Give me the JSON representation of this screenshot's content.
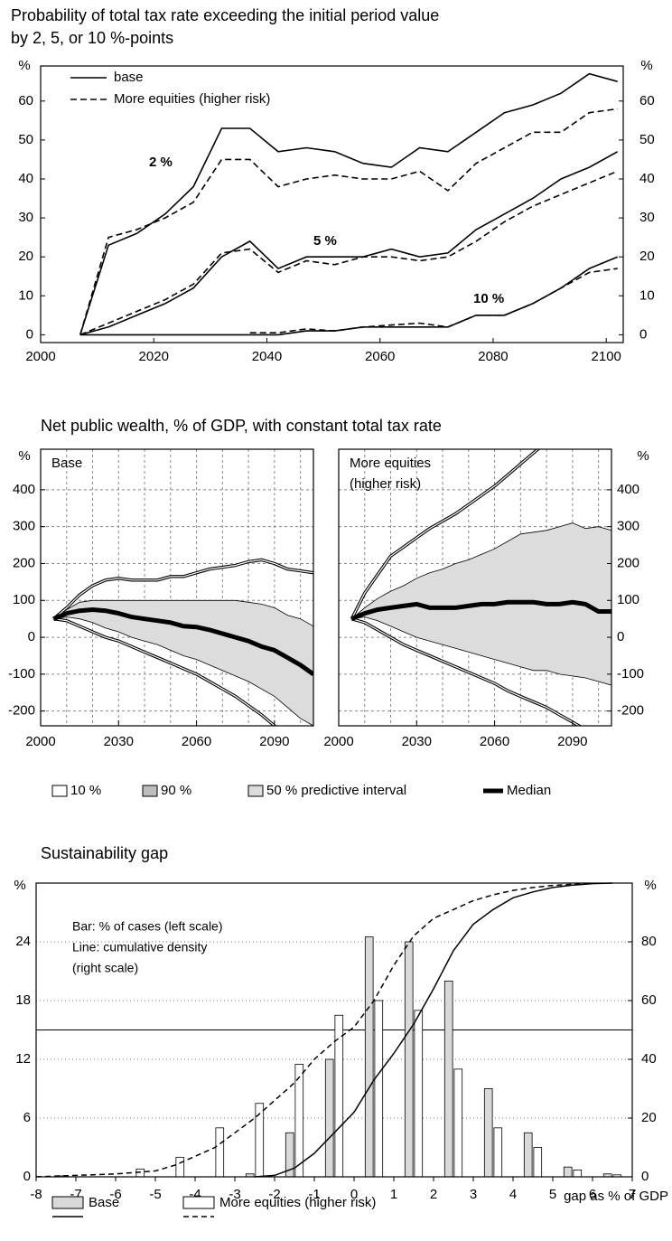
{
  "chart_data": [
    {
      "type": "line",
      "title": [
        "Probability of total tax rate exceeding the initial period value",
        "by 2, 5, or 10 %-points"
      ],
      "ylabel": "%",
      "y2label": "%",
      "x": [
        2007,
        2012,
        2017,
        2022,
        2027,
        2032,
        2037,
        2042,
        2047,
        2052,
        2057,
        2062,
        2067,
        2072,
        2077,
        2082,
        2087,
        2092,
        2097,
        2102
      ],
      "xlim": [
        2000,
        2103
      ],
      "xticks": [
        2000,
        2020,
        2040,
        2060,
        2080,
        2100
      ],
      "ylim": [
        -2,
        69
      ],
      "yticks": [
        0,
        10,
        20,
        30,
        40,
        50,
        60
      ],
      "grid": false,
      "annotations": [
        "2 %",
        "5 %",
        "10 %"
      ],
      "series": [
        {
          "name": "base",
          "color": "#000000",
          "dash": false,
          "values": [
            0,
            23,
            26,
            31,
            38,
            53,
            53,
            47,
            48,
            47,
            44,
            43,
            48,
            47,
            52,
            57,
            59,
            62,
            67,
            65
          ]
        },
        {
          "name": "More equities (higher risk)",
          "color": "#000000",
          "dash": true,
          "values": [
            0,
            25,
            27,
            30,
            34,
            45,
            45,
            38,
            40,
            41,
            40,
            40,
            42,
            37,
            44,
            48,
            52,
            52,
            57,
            58
          ]
        },
        {
          "name": "base",
          "color": "#000000",
          "dash": false,
          "values": [
            0,
            2,
            5,
            8,
            12,
            20,
            24,
            17,
            20,
            20,
            20,
            22,
            20,
            21,
            27,
            31,
            35,
            40,
            43,
            47
          ]
        },
        {
          "name": "More equities (higher risk)",
          "color": "#000000",
          "dash": true,
          "values": [
            0,
            3,
            6,
            9,
            13,
            21,
            22,
            16,
            19,
            18,
            20,
            20,
            19,
            20,
            24,
            29,
            33,
            36,
            39,
            42
          ]
        },
        {
          "name": "base",
          "color": "#000000",
          "dash": false,
          "values": [
            0,
            0,
            0,
            0,
            0,
            0,
            0,
            0,
            1,
            1,
            2,
            2,
            2,
            2,
            5,
            5,
            8,
            12,
            17,
            20
          ]
        },
        {
          "name": "More equities (higher risk)",
          "color": "#000000",
          "dash": true,
          "values": [
            null,
            null,
            null,
            null,
            null,
            null,
            0.5,
            0.5,
            1.5,
            1,
            2,
            2.5,
            3,
            2,
            5,
            5,
            8,
            12,
            16,
            17
          ]
        }
      ]
    },
    {
      "type": "fan",
      "title": "Net public wealth, % of GDP, with constant total tax rate",
      "ylabel": "%",
      "y2label": "%",
      "x": [
        2005,
        2010,
        2015,
        2020,
        2025,
        2030,
        2035,
        2040,
        2045,
        2050,
        2055,
        2060,
        2065,
        2070,
        2075,
        2080,
        2085,
        2090,
        2095,
        2100,
        2105
      ],
      "xlim": [
        2000,
        2105
      ],
      "xticks": [
        2000,
        2030,
        2060,
        2090
      ],
      "xgrid": [
        2010,
        2020,
        2030,
        2040,
        2050,
        2060,
        2070,
        2080,
        2090,
        2100
      ],
      "ylim": [
        -240,
        510
      ],
      "yticks": [
        -200,
        -100,
        0,
        100,
        200,
        300,
        400
      ],
      "grid": true,
      "legend": [
        "10 %",
        "90 %",
        "50 % predictive interval",
        "Median"
      ],
      "band_color": "#dcdcdc",
      "panels": [
        {
          "label": [
            "Base"
          ],
          "median": [
            50,
            65,
            72,
            75,
            72,
            65,
            55,
            50,
            45,
            40,
            30,
            28,
            20,
            10,
            0,
            -10,
            -25,
            -35,
            -55,
            -75,
            -100
          ],
          "p90": [
            50,
            80,
            115,
            140,
            155,
            160,
            155,
            155,
            155,
            165,
            165,
            175,
            185,
            190,
            195,
            205,
            210,
            200,
            185,
            180,
            175
          ],
          "p10": [
            50,
            45,
            30,
            15,
            0,
            -10,
            -25,
            -40,
            -55,
            -70,
            -85,
            -100,
            -120,
            -140,
            -160,
            -185,
            -210,
            -240,
            -270,
            -300,
            -330
          ],
          "band_high": [
            50,
            75,
            95,
            100,
            100,
            100,
            100,
            100,
            100,
            100,
            100,
            100,
            100,
            100,
            100,
            95,
            90,
            80,
            60,
            50,
            30
          ],
          "band_low": [
            50,
            55,
            50,
            40,
            25,
            15,
            0,
            -10,
            -20,
            -35,
            -50,
            -60,
            -75,
            -90,
            -105,
            -120,
            -140,
            -160,
            -190,
            -220,
            -240
          ]
        },
        {
          "label": [
            "More equities",
            "(higher risk)"
          ],
          "median": [
            50,
            65,
            75,
            80,
            85,
            90,
            80,
            80,
            80,
            85,
            90,
            90,
            95,
            95,
            95,
            90,
            90,
            95,
            90,
            70,
            70
          ],
          "p90": [
            50,
            120,
            170,
            220,
            245,
            270,
            295,
            315,
            335,
            360,
            385,
            410,
            440,
            470,
            500,
            530,
            560,
            590,
            620,
            650,
            680
          ],
          "p10": [
            50,
            40,
            20,
            0,
            -20,
            -35,
            -50,
            -65,
            -80,
            -95,
            -110,
            -125,
            -145,
            -160,
            -175,
            -190,
            -210,
            -230,
            -250,
            -280,
            -310
          ],
          "band_high": [
            50,
            80,
            105,
            125,
            140,
            160,
            175,
            185,
            200,
            210,
            225,
            240,
            260,
            280,
            285,
            290,
            300,
            310,
            295,
            300,
            290
          ],
          "band_low": [
            50,
            55,
            45,
            30,
            15,
            0,
            -10,
            -20,
            -30,
            -40,
            -50,
            -60,
            -70,
            -80,
            -90,
            -90,
            -100,
            -105,
            -110,
            -120,
            -130
          ]
        }
      ]
    },
    {
      "type": "bar",
      "title": "Sustainability gap",
      "ylabel": "%",
      "y2label": "%",
      "xlabel": "gap as % of GDP",
      "annotations": [
        "Bar: % of cases (left scale)",
        "Line: cumulative density",
        "(right scale)"
      ],
      "x": [
        -7.5,
        -6.5,
        -5.5,
        -4.5,
        -3.5,
        -2.5,
        -1.5,
        -0.5,
        0.5,
        1.5,
        2.5,
        3.5,
        4.5,
        5.5,
        6.5
      ],
      "xlim": [
        -8,
        7
      ],
      "xticks": [
        -8,
        -7,
        -6,
        -5,
        -4,
        -3,
        -2,
        -1,
        0,
        1,
        2,
        3,
        4,
        5,
        6,
        7
      ],
      "ylim": [
        0,
        30
      ],
      "yticks": [
        0,
        6,
        12,
        18,
        24
      ],
      "y2lim": [
        0,
        100
      ],
      "y2ticks": [
        0,
        20,
        40,
        60,
        80
      ],
      "hline": 50,
      "grid": true,
      "series": [
        {
          "name": "Base",
          "color": "#d9d9d9",
          "dash": false,
          "values": [
            0,
            0,
            0,
            0,
            0,
            0.3,
            4.5,
            12,
            24.5,
            24,
            20,
            9,
            4.5,
            1,
            0.3
          ],
          "cumulative": {
            "axis": "y2",
            "x": [
              -2.5,
              -2,
              -1.5,
              -1,
              -0.5,
              0,
              0.5,
              1,
              1.5,
              2,
              2.5,
              3,
              3.5,
              4,
              4.5,
              5,
              5.5,
              6,
              6.5
            ],
            "values": [
              0,
              0.5,
              3,
              8,
              15,
              22,
              33,
              42,
              52,
              64,
              77,
              86,
              91,
              95,
              97,
              98.5,
              99.3,
              99.8,
              100
            ]
          }
        },
        {
          "name": "More equities (higher risk)",
          "color": "#ffffff",
          "dash": true,
          "values": [
            0.1,
            0,
            0.8,
            2,
            5,
            7.5,
            11.5,
            16.5,
            18,
            17,
            11,
            5,
            3,
            0.7,
            0.2
          ],
          "cumulative": {
            "axis": "y2",
            "x": [
              -8,
              -7,
              -6,
              -5,
              -4.5,
              -4,
              -3.5,
              -3,
              -2.5,
              -2,
              -1.5,
              -1,
              -0.5,
              0,
              0.5,
              1,
              1.5,
              2,
              2.5,
              3,
              3.5,
              4,
              4.5,
              5,
              5.5,
              6
            ],
            "values": [
              0,
              0.5,
              1,
              2,
              4,
              7,
              10,
              15,
              20,
              26,
              32,
              40,
              46,
              51,
              60,
              72,
              82,
              88,
              91,
              94,
              96,
              97.5,
              98.5,
              99.2,
              99.6,
              100
            ]
          }
        }
      ]
    }
  ]
}
